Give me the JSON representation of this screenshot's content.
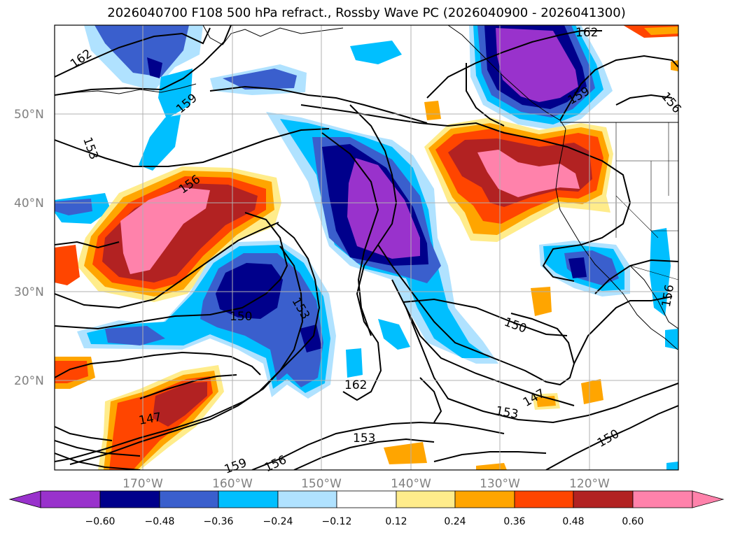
{
  "title": "2026040700 F108 500 hPa refract., Rossby Wave PC (2026040900 - 2026041300)",
  "lat_labels": [
    "50°N",
    "40°N",
    "30°N",
    "20°N"
  ],
  "lon_labels": [
    "170°W",
    "160°W",
    "150°W",
    "140°W",
    "130°W",
    "120°W"
  ],
  "contour_labels": [
    "162",
    "159",
    "153",
    "156",
    "150",
    "153",
    "162",
    "150",
    "147",
    "153",
    "153",
    "150",
    "147",
    "159",
    "156",
    "162",
    "159",
    "156",
    "156"
  ],
  "colorbar": {
    "ticks": [
      "−0.60",
      "−0.48",
      "−0.36",
      "−0.24",
      "−0.12",
      "0.12",
      "0.24",
      "0.36",
      "0.48",
      "0.60"
    ],
    "colors": [
      "#9932cc",
      "#00008b",
      "#3a5fcd",
      "#00bfff",
      "#b0e2ff",
      "#ffffff",
      "#ffec8b",
      "#ffa500",
      "#ff4500",
      "#b22222",
      "#ff82ab"
    ]
  },
  "colors": {
    "purple": "#9932cc",
    "navy": "#00008b",
    "blue": "#3a5fcd",
    "cyan": "#00bfff",
    "lightblue": "#b0e2ff",
    "yellow": "#ffec8b",
    "orange": "#ffa500",
    "redorange": "#ff4500",
    "firebrick": "#b22222",
    "pink": "#ff82ab"
  }
}
